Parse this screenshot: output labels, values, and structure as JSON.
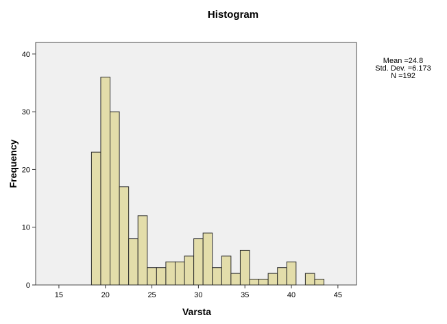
{
  "chart_data": {
    "type": "bar",
    "title": "Histogram",
    "xlabel": "Varsta",
    "ylabel": "Frequency",
    "xlim": [
      12.5,
      47.0
    ],
    "ylim": [
      0,
      42
    ],
    "bin_width": 1,
    "x_ticks": [
      15,
      20,
      25,
      30,
      35,
      40,
      45
    ],
    "y_ticks": [
      0,
      10,
      20,
      30,
      40
    ],
    "bins": [
      {
        "start": 18.5,
        "end": 19.5,
        "value": 23
      },
      {
        "start": 19.5,
        "end": 20.5,
        "value": 36
      },
      {
        "start": 20.5,
        "end": 21.5,
        "value": 30
      },
      {
        "start": 21.5,
        "end": 22.5,
        "value": 17
      },
      {
        "start": 22.5,
        "end": 23.5,
        "value": 8
      },
      {
        "start": 23.5,
        "end": 24.5,
        "value": 12
      },
      {
        "start": 24.5,
        "end": 25.5,
        "value": 3
      },
      {
        "start": 25.5,
        "end": 26.5,
        "value": 3
      },
      {
        "start": 26.5,
        "end": 27.5,
        "value": 4
      },
      {
        "start": 27.5,
        "end": 28.5,
        "value": 4
      },
      {
        "start": 28.5,
        "end": 29.5,
        "value": 5
      },
      {
        "start": 29.5,
        "end": 30.5,
        "value": 8
      },
      {
        "start": 30.5,
        "end": 31.5,
        "value": 9
      },
      {
        "start": 31.5,
        "end": 32.5,
        "value": 3
      },
      {
        "start": 32.5,
        "end": 33.5,
        "value": 5
      },
      {
        "start": 33.5,
        "end": 34.5,
        "value": 2
      },
      {
        "start": 34.5,
        "end": 35.5,
        "value": 6
      },
      {
        "start": 35.5,
        "end": 36.5,
        "value": 1
      },
      {
        "start": 36.5,
        "end": 37.5,
        "value": 1
      },
      {
        "start": 37.5,
        "end": 38.5,
        "value": 2
      },
      {
        "start": 38.5,
        "end": 39.5,
        "value": 3
      },
      {
        "start": 39.5,
        "end": 40.5,
        "value": 4
      },
      {
        "start": 41.5,
        "end": 42.5,
        "value": 2
      },
      {
        "start": 42.5,
        "end": 43.5,
        "value": 1
      }
    ],
    "stats": [
      "Mean =24.8",
      "Std. Dev. =6.173",
      "N =192"
    ],
    "grid": false,
    "legend": "none",
    "colors": {
      "bar_fill": "#e3ddaa",
      "bar_stroke": "#2a2a2a",
      "plot_background": "#f0f0f0",
      "plot_border": "#4a4a4a",
      "page_background": "#ffffff"
    }
  }
}
